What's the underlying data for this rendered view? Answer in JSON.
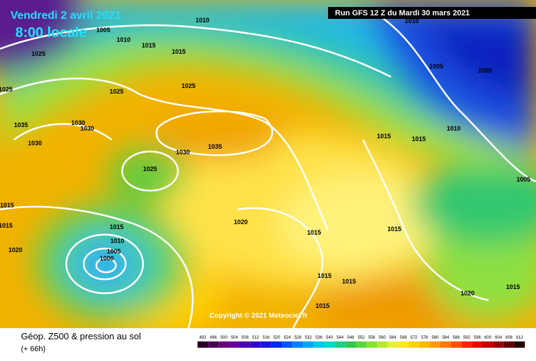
{
  "header": {
    "date": "Vendredi 2 avril 2021",
    "time": "8:00 locale",
    "run": "Run GFS 12 Z du Mardi 30 mars 2021"
  },
  "copyright": "Copyright © 2021 Meteociel.fr",
  "footer": {
    "title": "Géop. Z500 & pression au sol",
    "lead": "(+ 66h)"
  },
  "legend": {
    "labels": [
      492,
      496,
      500,
      504,
      508,
      512,
      516,
      520,
      524,
      528,
      532,
      536,
      540,
      544,
      548,
      552,
      556,
      560,
      564,
      568,
      572,
      576,
      580,
      584,
      588,
      592,
      596,
      600,
      604,
      608,
      612
    ]
  },
  "isobar_labels": [
    1010,
    1005,
    1010,
    1015,
    1015,
    1010,
    1005,
    1005,
    1025,
    1025,
    1025,
    1025,
    1035,
    1030,
    1030,
    1030,
    1035,
    1030,
    1025,
    1015,
    1015,
    1010,
    1005,
    1015,
    1015,
    1015,
    1010,
    1005,
    1000,
    1020,
    1020,
    1015,
    1015,
    1015,
    1015,
    1020,
    1015,
    1015
  ]
}
